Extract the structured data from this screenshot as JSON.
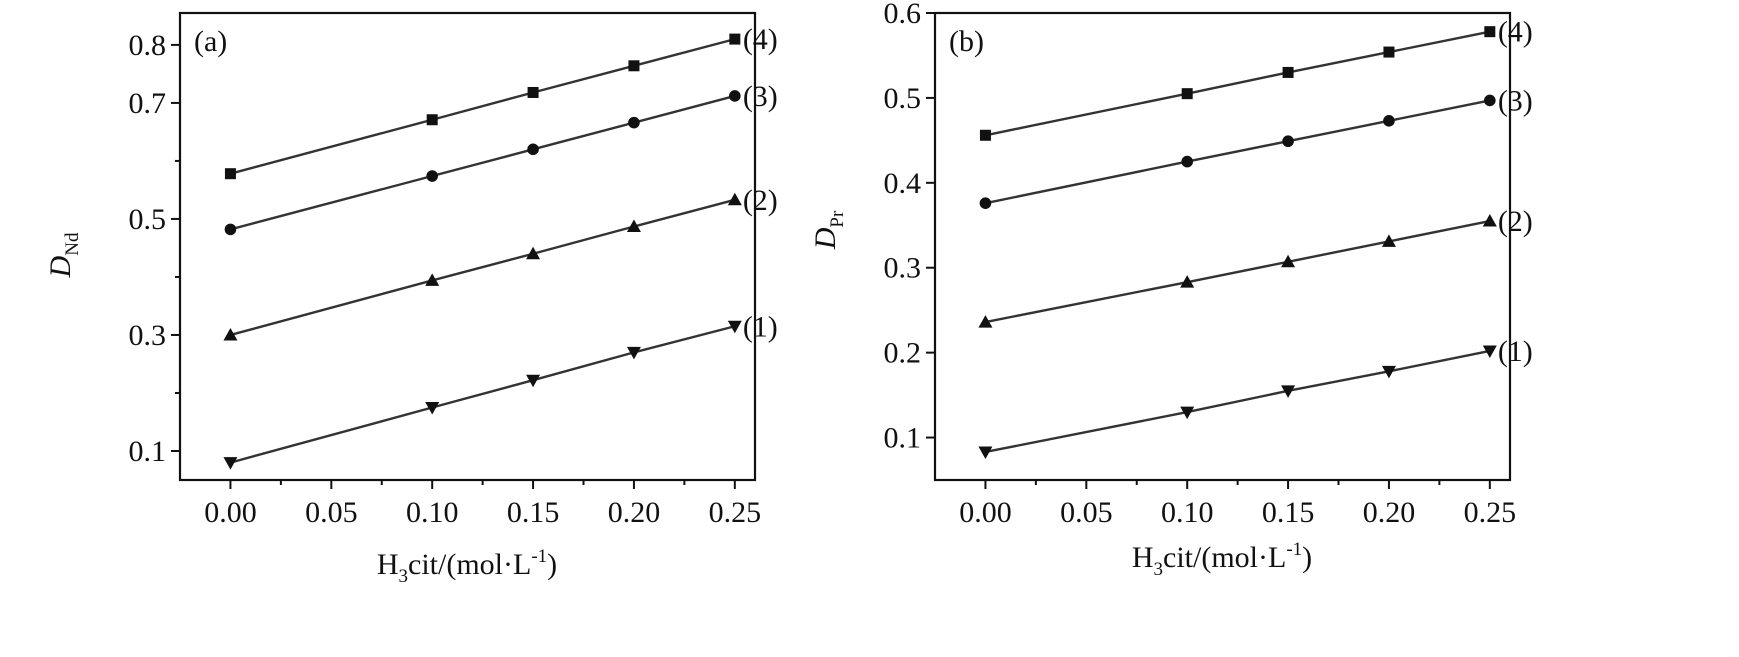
{
  "chart_data": [
    {
      "type": "line",
      "panel_label": "(a)",
      "xlabel": {
        "main_a": "H",
        "sub": "3",
        "main_b": "cit/(mol·L",
        "sup": "-1",
        "tail": ")"
      },
      "ylabel": {
        "main": "D",
        "sub": "Nd"
      },
      "xlim": [
        -0.025,
        0.26
      ],
      "ylim": [
        0.05,
        0.855
      ],
      "xticks": [
        "0.00",
        "0.05",
        "0.10",
        "0.15",
        "0.20",
        "0.25"
      ],
      "yticks": [
        "0.1",
        "0.3",
        "0.5",
        "0.7",
        "0.8"
      ],
      "grid": false,
      "legend": "none",
      "series": [
        {
          "name": "(1)",
          "marker": "triangle-down",
          "x": [
            0.0,
            0.1,
            0.15,
            0.2,
            0.25
          ],
          "y": [
            0.08,
            0.175,
            0.222,
            0.27,
            0.315
          ]
        },
        {
          "name": "(2)",
          "marker": "triangle-up",
          "x": [
            0.0,
            0.1,
            0.15,
            0.2,
            0.25
          ],
          "y": [
            0.3,
            0.394,
            0.44,
            0.487,
            0.533
          ]
        },
        {
          "name": "(3)",
          "marker": "circle",
          "x": [
            0.0,
            0.1,
            0.15,
            0.2,
            0.25
          ],
          "y": [
            0.482,
            0.574,
            0.62,
            0.666,
            0.712
          ]
        },
        {
          "name": "(4)",
          "marker": "square",
          "x": [
            0.0,
            0.1,
            0.15,
            0.2,
            0.25
          ],
          "y": [
            0.578,
            0.671,
            0.718,
            0.764,
            0.81
          ]
        }
      ]
    },
    {
      "type": "line",
      "panel_label": "(b)",
      "xlabel": {
        "main_a": "H",
        "sub": "3",
        "main_b": "cit/(mol·L",
        "sup": "-1",
        "tail": ")"
      },
      "ylabel": {
        "main": "D",
        "sub": "Pr"
      },
      "xlim": [
        -0.025,
        0.26
      ],
      "ylim": [
        0.05,
        0.6
      ],
      "xticks": [
        "0.00",
        "0.05",
        "0.10",
        "0.15",
        "0.20",
        "0.25"
      ],
      "yticks": [
        "0.1",
        "0.2",
        "0.3",
        "0.4",
        "0.5",
        "0.6"
      ],
      "grid": false,
      "legend": "none",
      "series": [
        {
          "name": "(1)",
          "marker": "triangle-down",
          "x": [
            0.0,
            0.1,
            0.15,
            0.2,
            0.25
          ],
          "y": [
            0.083,
            0.13,
            0.155,
            0.178,
            0.202
          ]
        },
        {
          "name": "(2)",
          "marker": "triangle-up",
          "x": [
            0.0,
            0.1,
            0.15,
            0.2,
            0.25
          ],
          "y": [
            0.236,
            0.283,
            0.307,
            0.331,
            0.355
          ]
        },
        {
          "name": "(3)",
          "marker": "circle",
          "x": [
            0.0,
            0.1,
            0.15,
            0.2,
            0.25
          ],
          "y": [
            0.376,
            0.425,
            0.449,
            0.473,
            0.497
          ]
        },
        {
          "name": "(4)",
          "marker": "square",
          "x": [
            0.0,
            0.1,
            0.15,
            0.2,
            0.25
          ],
          "y": [
            0.456,
            0.505,
            0.53,
            0.554,
            0.578
          ]
        }
      ]
    }
  ]
}
